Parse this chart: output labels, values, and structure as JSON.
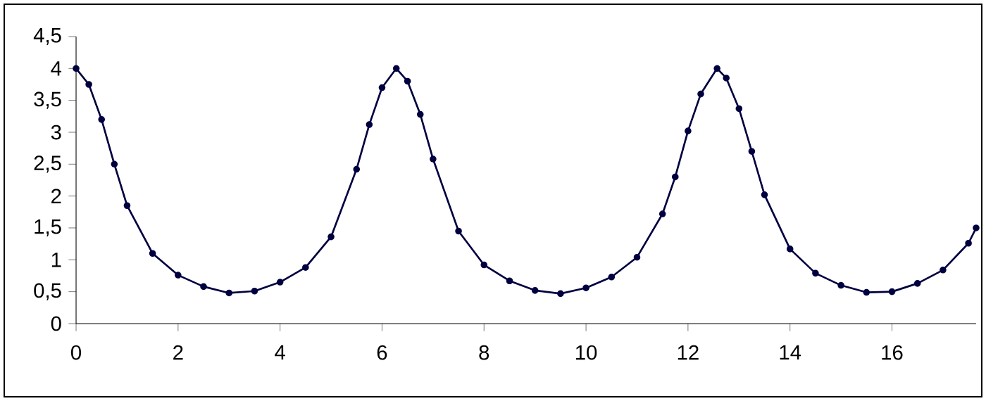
{
  "chart_data": {
    "type": "line",
    "x": [
      0,
      0.25,
      0.5,
      0.75,
      1.0,
      1.5,
      2.0,
      2.5,
      3.0,
      3.5,
      4.0,
      4.5,
      5.0,
      5.5,
      5.75,
      6.0,
      6.28,
      6.5,
      6.75,
      7.0,
      7.5,
      8.0,
      8.5,
      9.0,
      9.5,
      10.0,
      10.5,
      11.0,
      11.5,
      11.75,
      12.0,
      12.25,
      12.57,
      12.75,
      13.0,
      13.25,
      13.5,
      14.0,
      14.5,
      15.0,
      15.5,
      16.0,
      16.5,
      17.0,
      17.5,
      17.65
    ],
    "series": [
      {
        "color": "#000040",
        "values": [
          4.0,
          3.75,
          3.2,
          2.5,
          1.85,
          1.1,
          0.76,
          0.58,
          0.48,
          0.51,
          0.65,
          0.88,
          1.36,
          2.42,
          3.12,
          3.7,
          4.0,
          3.8,
          3.28,
          2.58,
          1.45,
          0.92,
          0.67,
          0.52,
          0.47,
          0.56,
          0.73,
          1.04,
          1.72,
          2.3,
          3.02,
          3.6,
          4.0,
          3.85,
          3.37,
          2.7,
          2.02,
          1.17,
          0.79,
          0.6,
          0.49,
          0.5,
          0.63,
          0.84,
          1.26,
          1.5
        ]
      }
    ],
    "xlim": [
      0,
      17.65
    ],
    "ylim": [
      0,
      4.5
    ],
    "xticks": [
      0,
      2,
      4,
      6,
      8,
      10,
      12,
      14,
      16
    ],
    "yticks": [
      0,
      {
        "value": 0.5,
        "label": "0,5"
      },
      1,
      {
        "value": 1.5,
        "label": "1,5"
      },
      2,
      {
        "value": 2.5,
        "label": "2,5"
      },
      3,
      {
        "value": 3.5,
        "label": "3,5"
      },
      4,
      {
        "value": 4.5,
        "label": "4,5"
      }
    ],
    "marker": "circle",
    "line_style": "solid"
  }
}
